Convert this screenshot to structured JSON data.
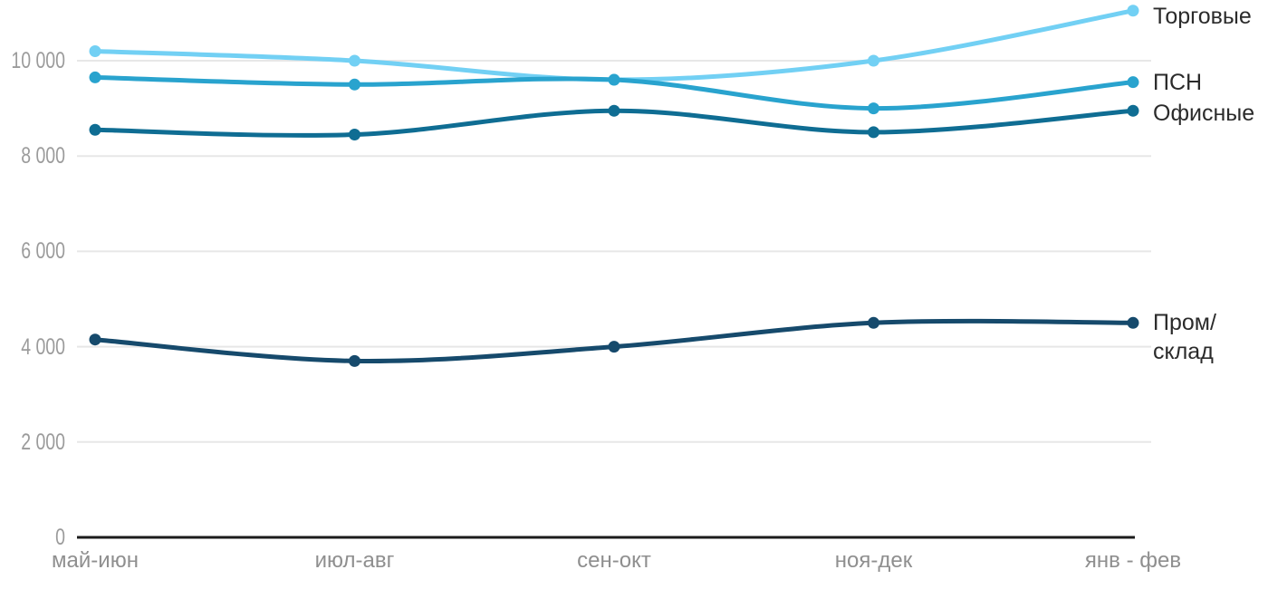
{
  "chart_data": {
    "type": "line",
    "title": "",
    "xlabel": "",
    "ylabel": "",
    "line_style": "spline",
    "markers": true,
    "grid": "horizontal",
    "legend_position": "right-of-line-ends",
    "categories": [
      "май-июн",
      "июл-авг",
      "сен-окт",
      "ноя-дек",
      "янв - фев"
    ],
    "series": [
      {
        "id": "torgovye-retail",
        "name": "Торговые",
        "label_lines": [
          "Торговые"
        ],
        "color": "#72D0F4",
        "values": [
          10200,
          10000,
          9600,
          10000,
          11050
        ]
      },
      {
        "id": "psn",
        "name": "ПСН",
        "label_lines": [
          "ПСН"
        ],
        "color": "#29A3CE",
        "values": [
          9650,
          9500,
          9600,
          9000,
          9550
        ]
      },
      {
        "id": "ofisnye-office",
        "name": "Офисные",
        "label_lines": [
          "Офисные"
        ],
        "color": "#0F6D93",
        "values": [
          8550,
          8450,
          8950,
          8500,
          8950
        ]
      },
      {
        "id": "prom-sklad",
        "name": "Пром/склад",
        "label_lines": [
          "Пром/",
          "склад"
        ],
        "color": "#164A6C",
        "values": [
          4150,
          3700,
          4000,
          4500,
          4500
        ]
      }
    ],
    "y_axis": {
      "min": 0,
      "max": 11300,
      "tick_interval": 2000,
      "ticks": [
        {
          "value": 0,
          "label": "0"
        },
        {
          "value": 2000,
          "label": "2 000"
        },
        {
          "value": 4000,
          "label": "4 000"
        },
        {
          "value": 6000,
          "label": "6 000"
        },
        {
          "value": 8000,
          "label": "8 000"
        },
        {
          "value": 10000,
          "label": "10 000"
        }
      ]
    }
  },
  "colors": {
    "background": "#FFFFFF",
    "gridline": "#E7E7E7",
    "axis_line": "#1B1B1B",
    "y_tick_label": "#9B9B9B",
    "x_tick_label": "#8F8F8F",
    "legend_text": "#2B2B2B"
  }
}
